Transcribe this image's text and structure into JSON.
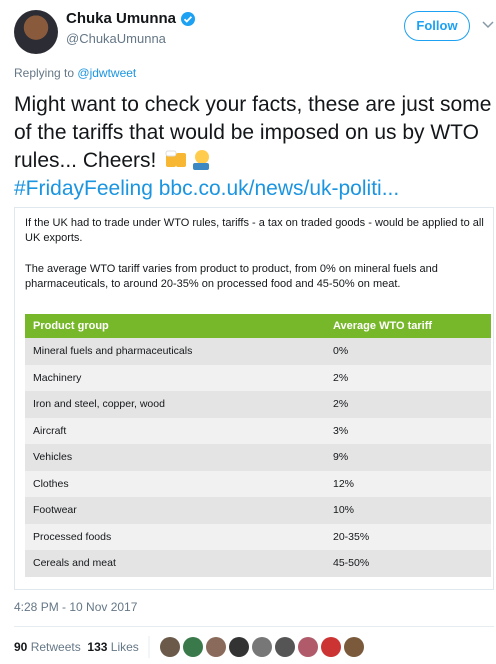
{
  "header": {
    "name": "Chuka Umunna",
    "handle": "@ChukaUmunna",
    "follow": "Follow"
  },
  "reply": {
    "prefix": "Replying to",
    "handle": "@jdwtweet"
  },
  "tweet": {
    "text": "Might want to check your facts, these are just some of the tariffs that would be imposed on us by WTO rules... Cheers!",
    "hashtag": "#FridayFeeling",
    "link": "bbc.co.uk/news/uk-politi..."
  },
  "card": {
    "paragraphs": [
      "If the UK had to trade under WTO rules, tariffs - a tax on traded goods - would be applied to all UK exports.",
      "The average WTO tariff varies from product to product, from 0% on mineral fuels and pharmaceuticals, to around 20-35% on processed food and 45-50% on meat."
    ]
  },
  "table": {
    "columns": [
      "Product group",
      "Average WTO tariff"
    ],
    "rows": [
      [
        "Mineral fuels and pharmaceuticals",
        "0%"
      ],
      [
        "Machinery",
        "2%"
      ],
      [
        "Iron and steel, copper, wood",
        "2%"
      ],
      [
        "Aircraft",
        "3%"
      ],
      [
        "Vehicles",
        "9%"
      ],
      [
        "Clothes",
        "12%"
      ],
      [
        "Footwear",
        "10%"
      ],
      [
        "Processed foods",
        "20-35%"
      ],
      [
        "Cereals and meat",
        "45-50%"
      ]
    ]
  },
  "footer": {
    "timestamp": "4:28 PM - 10 Nov 2017",
    "retweets": {
      "count": 90,
      "label": "Retweets"
    },
    "likes": {
      "count": 133,
      "label": "Likes"
    }
  }
}
